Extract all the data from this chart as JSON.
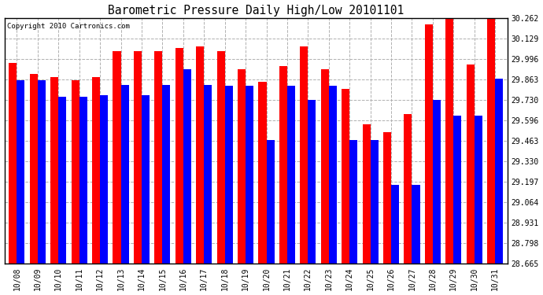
{
  "title": "Barometric Pressure Daily High/Low 20101101",
  "copyright": "Copyright 2010 Cartronics.com",
  "dates": [
    "10/08",
    "10/09",
    "10/10",
    "10/11",
    "10/12",
    "10/13",
    "10/14",
    "10/15",
    "10/16",
    "10/17",
    "10/18",
    "10/19",
    "10/20",
    "10/21",
    "10/22",
    "10/23",
    "10/24",
    "10/25",
    "10/26",
    "10/27",
    "10/28",
    "10/29",
    "10/30",
    "10/31"
  ],
  "highs": [
    29.97,
    29.9,
    29.88,
    29.86,
    29.88,
    30.05,
    30.05,
    30.05,
    30.07,
    30.08,
    30.05,
    29.93,
    29.85,
    29.95,
    30.08,
    29.93,
    29.8,
    29.57,
    29.52,
    29.64,
    30.22,
    30.26,
    29.96,
    30.26
  ],
  "lows": [
    29.86,
    29.86,
    29.75,
    29.75,
    29.76,
    29.83,
    29.76,
    29.83,
    29.93,
    29.83,
    29.82,
    29.82,
    29.47,
    29.82,
    29.73,
    29.82,
    29.47,
    29.47,
    29.18,
    29.18,
    29.73,
    29.63,
    29.63,
    29.87
  ],
  "high_color": "#ff0000",
  "low_color": "#0000ff",
  "bg_color": "#ffffff",
  "grid_color": "#b0b0b0",
  "ymin": 28.665,
  "ymax": 30.262,
  "yticks": [
    28.665,
    28.798,
    28.931,
    29.064,
    29.197,
    29.33,
    29.463,
    29.596,
    29.73,
    29.863,
    29.996,
    30.129,
    30.262
  ]
}
